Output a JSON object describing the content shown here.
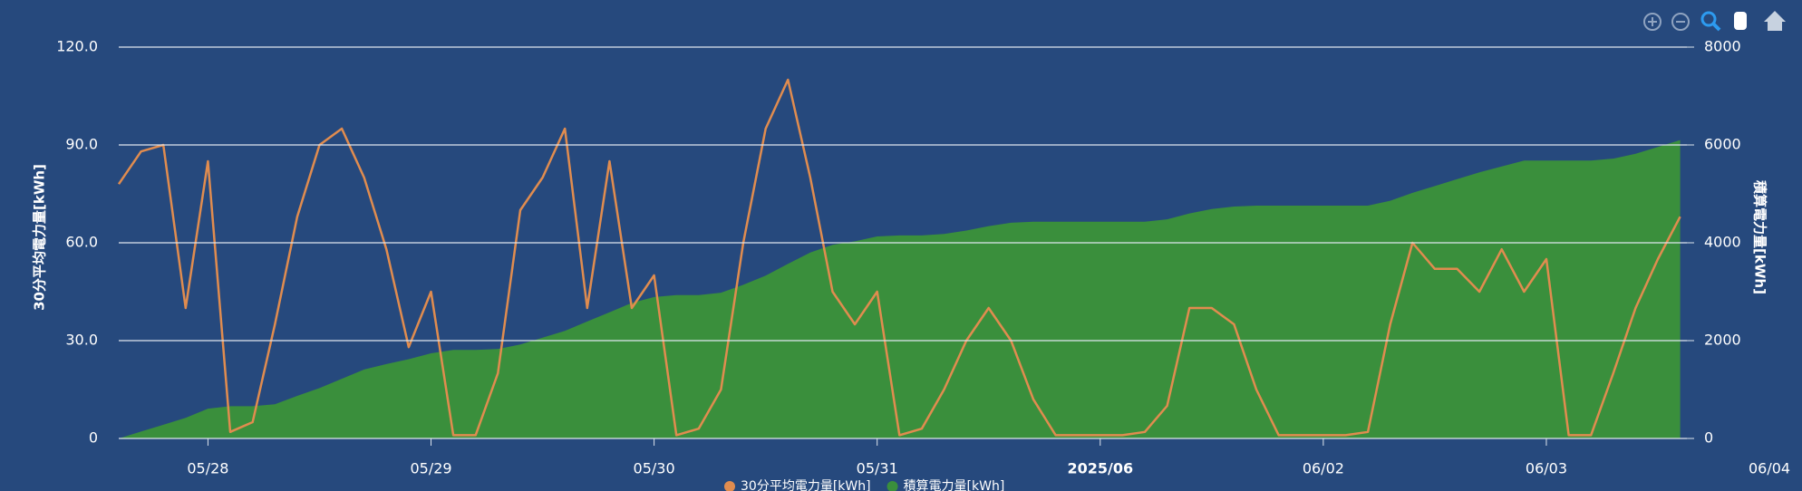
{
  "chart_data": {
    "type": "line-area",
    "y_label": "30分平均電力量[kWh]",
    "y2_label": "積算電力量[kWh]",
    "x": [
      27.6,
      27.7,
      27.8,
      27.9,
      28.0,
      28.1,
      28.2,
      28.3,
      28.4,
      28.5,
      28.6,
      28.7,
      28.8,
      28.9,
      29.0,
      29.1,
      29.2,
      29.3,
      29.4,
      29.5,
      29.6,
      29.7,
      29.8,
      29.9,
      30.0,
      30.1,
      30.2,
      30.3,
      30.4,
      30.5,
      30.6,
      30.7,
      30.8,
      30.9,
      31.0,
      31.1,
      31.2,
      31.3,
      31.4,
      31.5,
      31.6,
      31.7,
      31.8,
      31.9,
      32.0,
      32.1,
      32.2,
      32.3,
      32.4,
      32.5,
      32.6,
      32.7,
      32.8,
      32.9,
      33.0,
      33.1,
      33.2,
      33.3,
      33.4,
      33.5,
      33.6,
      33.7,
      33.8,
      33.9,
      34.0,
      34.1,
      34.2,
      34.3,
      34.4,
      34.5,
      34.6
    ],
    "xlim": [
      27.6,
      34.63
    ],
    "xticks": [
      {
        "value": 28,
        "label": "05/28"
      },
      {
        "value": 29,
        "label": "05/29"
      },
      {
        "value": 30,
        "label": "05/30"
      },
      {
        "value": 31,
        "label": "05/31"
      },
      {
        "value": 32,
        "label": "2025/06"
      },
      {
        "value": 33,
        "label": "06/02"
      },
      {
        "value": 34,
        "label": "06/03"
      },
      {
        "value": 35,
        "label": "06/04"
      }
    ],
    "ylim": [
      0,
      120
    ],
    "yticks": [
      {
        "value": 0,
        "label": "0"
      },
      {
        "value": 30,
        "label": "30.0"
      },
      {
        "value": 60,
        "label": "60.0"
      },
      {
        "value": 90,
        "label": "90.0"
      },
      {
        "value": 120,
        "label": "120.0"
      }
    ],
    "y2lim": [
      0,
      8000
    ],
    "y2ticks": [
      0,
      2000,
      4000,
      6000,
      8000
    ],
    "grid": true,
    "series": [
      {
        "name": "30分平均電力量[kWh]",
        "type": "line",
        "color": "#e08c4f",
        "values": [
          78,
          88,
          90,
          40,
          85,
          2,
          5,
          35,
          68,
          90,
          95,
          80,
          58,
          28,
          45,
          1,
          1,
          20,
          70,
          80,
          95,
          40,
          85,
          40,
          50,
          1,
          3,
          15,
          60,
          95,
          110,
          80,
          45,
          35,
          45,
          1,
          3,
          15,
          30,
          40,
          30,
          12,
          1,
          1,
          1,
          1,
          2,
          10,
          40,
          40,
          35,
          15,
          1,
          1,
          1,
          1,
          2,
          35,
          60,
          52,
          52,
          45,
          58,
          45,
          55,
          1,
          1,
          20,
          40,
          55,
          68
        ]
      },
      {
        "name": "積算電力量[kWh]",
        "type": "area",
        "axis": "y2",
        "color": "#3a8f3c",
        "values": [
          0,
          140,
          280,
          420,
          610,
          660,
          660,
          700,
          870,
          1030,
          1220,
          1410,
          1520,
          1620,
          1740,
          1810,
          1810,
          1830,
          1920,
          2060,
          2200,
          2390,
          2580,
          2770,
          2890,
          2930,
          2930,
          2980,
          3140,
          3330,
          3570,
          3800,
          3960,
          4030,
          4130,
          4150,
          4150,
          4180,
          4250,
          4340,
          4410,
          4430,
          4430,
          4430,
          4430,
          4430,
          4430,
          4480,
          4600,
          4690,
          4740,
          4760,
          4760,
          4760,
          4760,
          4760,
          4760,
          4860,
          5020,
          5160,
          5300,
          5440,
          5560,
          5680,
          5680,
          5680,
          5680,
          5720,
          5820,
          5960,
          6100
        ]
      }
    ]
  }
}
